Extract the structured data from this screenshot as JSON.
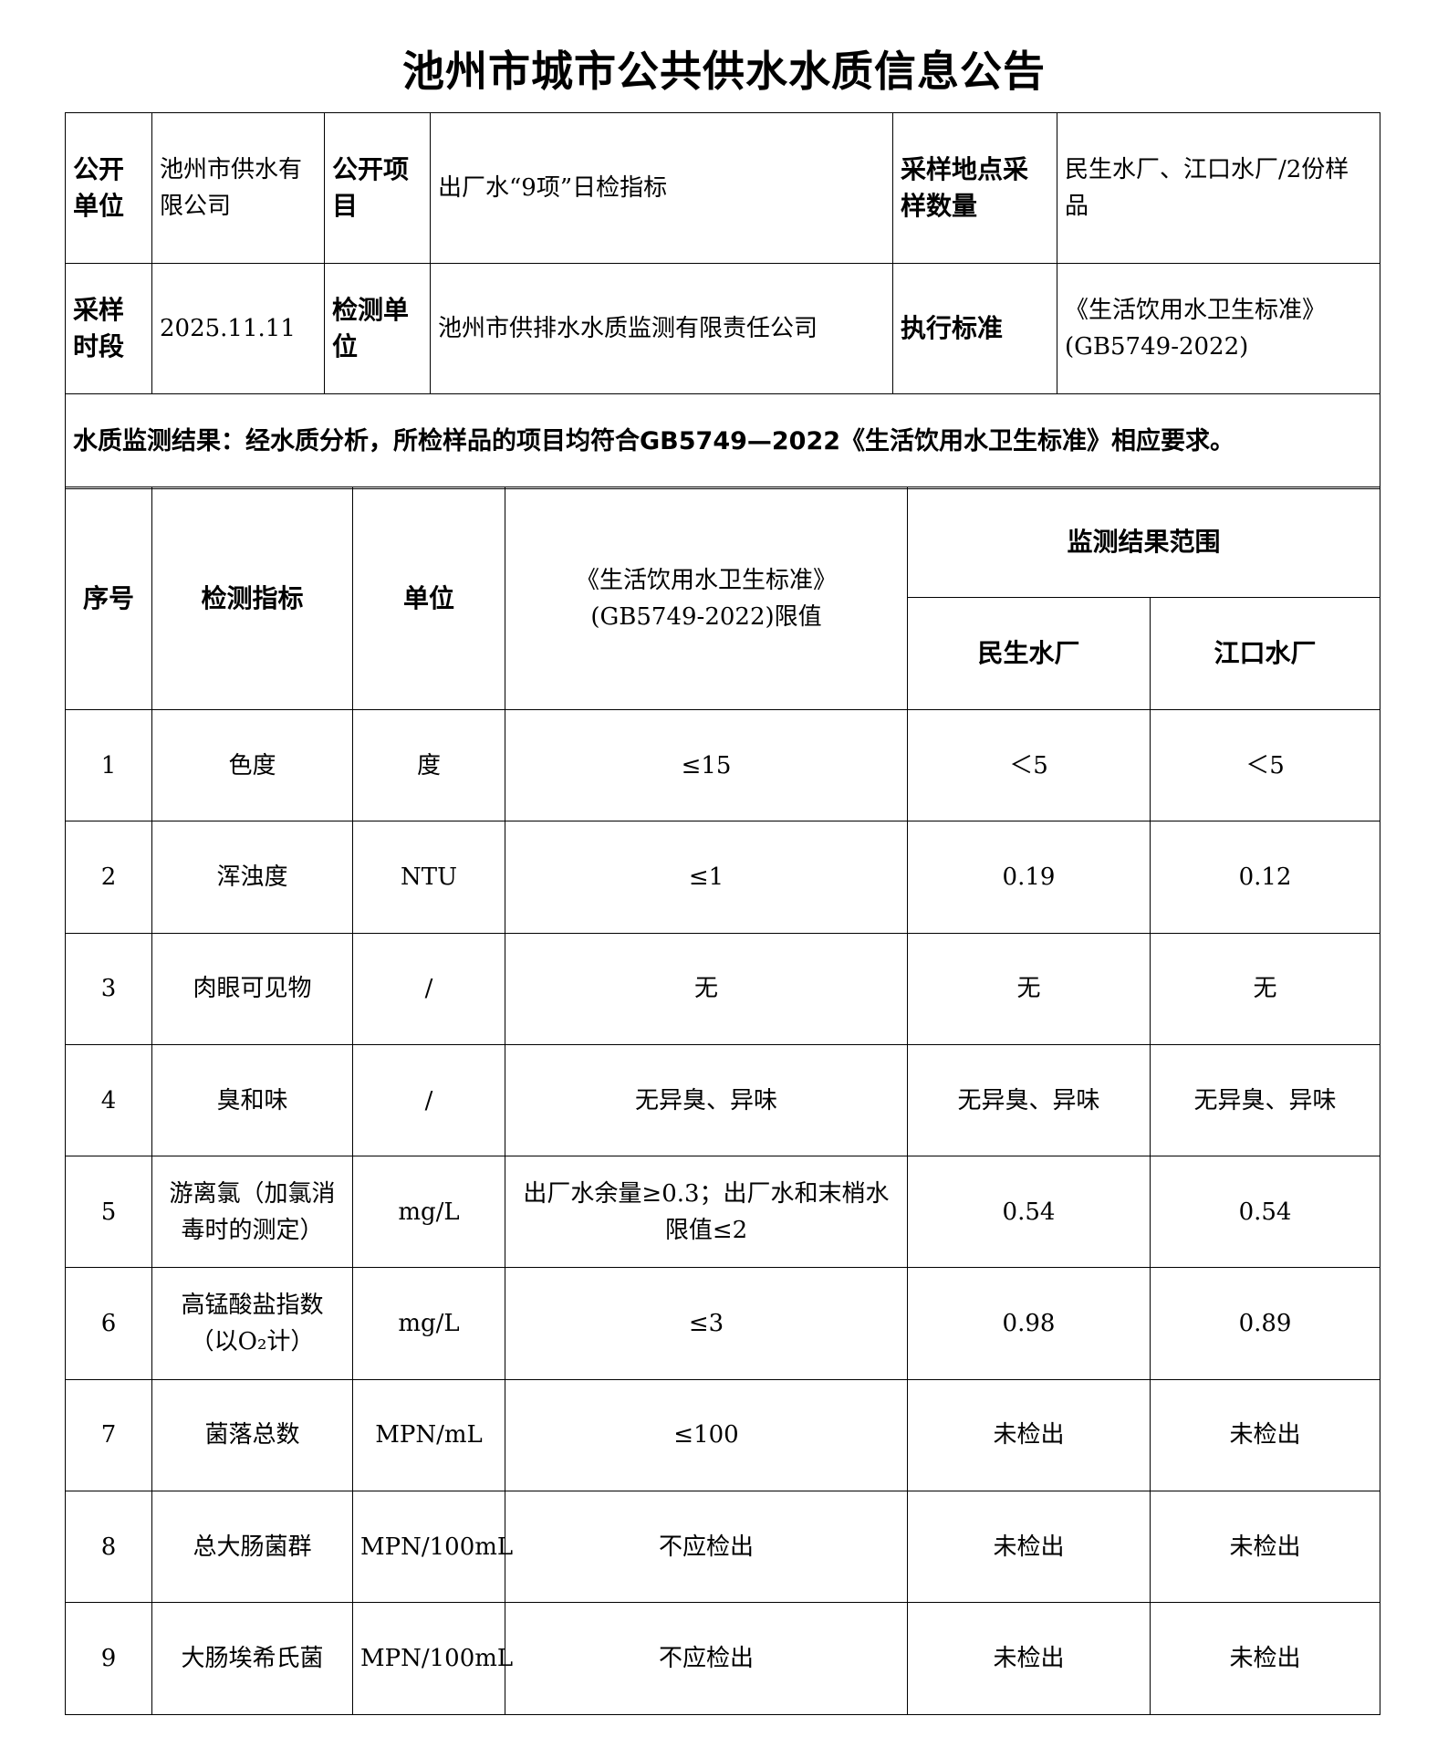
{
  "title": "池州市城市公共供水水质信息公告",
  "info": {
    "publisher_label": "公开单位",
    "publisher": "池州市供水有限公司",
    "item_label": "公开项目",
    "item": "出厂水“9项”日检指标",
    "site_label": "采样地点采样数量",
    "site": "民生水厂、江口水厂/2份样品",
    "period_label": "采样时段",
    "period": "2025.11.11",
    "lab_label": "检测单位",
    "lab": "池州市供排水水质监测有限责任公司",
    "standard_label": "执行标准",
    "standard": "《生活饮用水卫生标准》(GB5749-2022)"
  },
  "conclusion": "水质监测结果：经水质分析，所检样品的项目均符合GB5749—2022《生活饮用水卫生标准》相应要求。",
  "headers": {
    "no": "序号",
    "indicator": "检测指标",
    "unit": "单位",
    "limit": "《生活饮用水卫生标准》(GB5749-2022)限值",
    "range": "监测结果范围",
    "plant1": "民生水厂",
    "plant2": "江口水厂"
  },
  "rows": [
    {
      "no": "1",
      "indicator": "色度",
      "unit": "度",
      "limit": "≤15",
      "p1": "＜5",
      "p2": "＜5"
    },
    {
      "no": "2",
      "indicator": "浑浊度",
      "unit": "NTU",
      "limit": "≤1",
      "p1": "0.19",
      "p2": "0.12"
    },
    {
      "no": "3",
      "indicator": "肉眼可见物",
      "unit": "/",
      "limit": "无",
      "p1": "无",
      "p2": "无"
    },
    {
      "no": "4",
      "indicator": "臭和味",
      "unit": "/",
      "limit": "无异臭、异味",
      "p1": "无异臭、异味",
      "p2": "无异臭、异味"
    },
    {
      "no": "5",
      "indicator": "游离氯（加氯消毒时的测定）",
      "unit": "mg/L",
      "limit": "出厂水余量≥0.3；出厂水和末梢水限值≤2",
      "p1": "0.54",
      "p2": "0.54"
    },
    {
      "no": "6",
      "indicator": "高锰酸盐指数（以O₂计）",
      "unit": "mg/L",
      "limit": "≤3",
      "p1": "0.98",
      "p2": "0.89"
    },
    {
      "no": "7",
      "indicator": "菌落总数",
      "unit": "MPN/mL",
      "limit": "≤100",
      "p1": "未检出",
      "p2": "未检出"
    },
    {
      "no": "8",
      "indicator": "总大肠菌群",
      "unit": "MPN/100mL",
      "limit": "不应检出",
      "p1": "未检出",
      "p2": "未检出"
    },
    {
      "no": "9",
      "indicator": "大肠埃希氏菌",
      "unit": "MPN/100mL",
      "limit": "不应检出",
      "p1": "未检出",
      "p2": "未检出"
    }
  ]
}
